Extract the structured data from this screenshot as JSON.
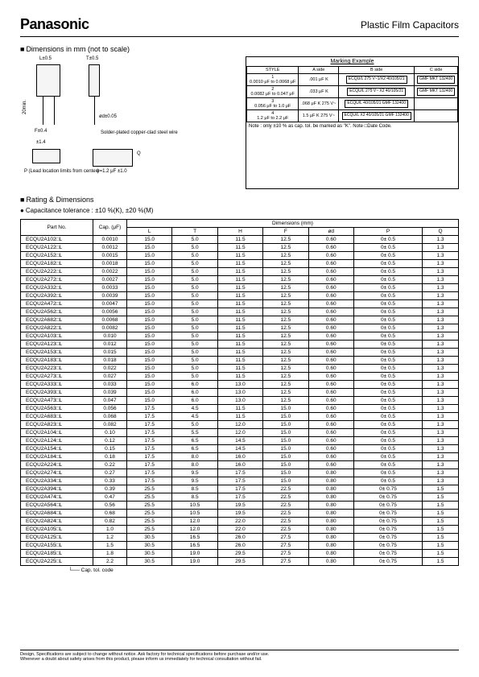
{
  "header": {
    "brand": "Panasonic",
    "title": "Plastic Film Capacitors"
  },
  "sections": {
    "dims_head": "Dimensions in mm (not to scale)",
    "rating_head": "Rating & Dimensions",
    "tol_note": "Capacitance tolerance : ±10 %(K), ±20 %(M)"
  },
  "diagram": {
    "t_label": "T±0.5",
    "l_label": "L±0.5",
    "f_label": "F±0.4",
    "h_label": "20min.",
    "od_label": "ød±0.05",
    "wire_note": "Solder-plated copper-clad steel wire",
    "p_note": "P (Lead location limits from center)",
    "q_note": "Q",
    "phi_note": "ø=1.2 μF ±1.0",
    "pm14": "±1.4"
  },
  "marking": {
    "title": "Marking Example",
    "headers": [
      "STYLE",
      "A side",
      "B side",
      "C side"
    ],
    "rows": [
      {
        "style": "1",
        "range": "0.0010 μF to 0.0068 μF",
        "a": ".001 μF  K",
        "b": "ECQU/L 275 V~1/X2 40/105/21",
        "c": "GMF MKT 132400"
      },
      {
        "style": "2",
        "range": "0.0082 μF to 0.047 μF",
        "a": ".033 μF  K",
        "b": "ECQU/L 275 V~ X2 40/105/21",
        "c": "GMF MKT 132400"
      },
      {
        "style": "3",
        "range": "0.056 μF to 1.0 μF",
        "a": ".068 μF  K 275 V~",
        "b": "ECQU/L 40/105/21 GMF 132400",
        "c": ""
      },
      {
        "style": "4",
        "range": "1.2 μF to 2.2 μF",
        "a": "1.5 μF  K 275 V~",
        "b": "ECQU/L X2 40/105/21 GMF 132400",
        "c": ""
      }
    ],
    "note": "Note : only ±10 % as cap. tol. be marked as \"K\". Note □Date Code."
  },
  "table": {
    "col_head_part": "Part No.",
    "col_head_cap": "Cap. (μF)",
    "col_head_dim": "Dimensions (mm)",
    "dim_cols": [
      "L",
      "T",
      "H",
      "F",
      "ød",
      "P",
      "Q"
    ],
    "rows": [
      {
        "pn": "ECQU2A102□L",
        "cap": "0.0010",
        "L": "15.0",
        "T": "5.0",
        "H": "11.5",
        "F": "12.5",
        "od": "0.60",
        "P": "0± 0.5",
        "Q": "1.3"
      },
      {
        "pn": "ECQU2A122□L",
        "cap": "0.0012",
        "L": "15.0",
        "T": "5.0",
        "H": "11.5",
        "F": "12.5",
        "od": "0.60",
        "P": "0± 0.5",
        "Q": "1.3"
      },
      {
        "pn": "ECQU2A152□L",
        "cap": "0.0015",
        "L": "15.0",
        "T": "5.0",
        "H": "11.5",
        "F": "12.5",
        "od": "0.60",
        "P": "0± 0.5",
        "Q": "1.3"
      },
      {
        "pn": "ECQU2A182□L",
        "cap": "0.0018",
        "L": "15.0",
        "T": "5.0",
        "H": "11.5",
        "F": "12.5",
        "od": "0.60",
        "P": "0± 0.5",
        "Q": "1.3"
      },
      {
        "pn": "ECQU2A222□L",
        "cap": "0.0022",
        "L": "15.0",
        "T": "5.0",
        "H": "11.5",
        "F": "12.5",
        "od": "0.60",
        "P": "0± 0.5",
        "Q": "1.3"
      },
      {
        "pn": "ECQU2A272□L",
        "cap": "0.0027",
        "L": "15.0",
        "T": "5.0",
        "H": "11.5",
        "F": "12.5",
        "od": "0.60",
        "P": "0± 0.5",
        "Q": "1.3"
      },
      {
        "pn": "ECQU2A332□L",
        "cap": "0.0033",
        "L": "15.0",
        "T": "5.0",
        "H": "11.5",
        "F": "12.5",
        "od": "0.60",
        "P": "0± 0.5",
        "Q": "1.3"
      },
      {
        "pn": "ECQU2A392□L",
        "cap": "0.0039",
        "L": "15.0",
        "T": "5.0",
        "H": "11.5",
        "F": "12.5",
        "od": "0.60",
        "P": "0± 0.5",
        "Q": "1.3"
      },
      {
        "pn": "ECQU2A472□L",
        "cap": "0.0047",
        "L": "15.0",
        "T": "5.0",
        "H": "11.5",
        "F": "12.5",
        "od": "0.60",
        "P": "0± 0.5",
        "Q": "1.3"
      },
      {
        "pn": "ECQU2A562□L",
        "cap": "0.0056",
        "L": "15.0",
        "T": "5.0",
        "H": "11.5",
        "F": "12.5",
        "od": "0.60",
        "P": "0± 0.5",
        "Q": "1.3"
      },
      {
        "pn": "ECQU2A682□L",
        "cap": "0.0068",
        "L": "15.0",
        "T": "5.0",
        "H": "11.5",
        "F": "12.5",
        "od": "0.60",
        "P": "0± 0.5",
        "Q": "1.3"
      },
      {
        "pn": "ECQU2A822□L",
        "cap": "0.0082",
        "L": "15.0",
        "T": "5.0",
        "H": "11.5",
        "F": "12.5",
        "od": "0.60",
        "P": "0± 0.5",
        "Q": "1.3"
      },
      {
        "pn": "ECQU2A103□L",
        "cap": "0.010",
        "L": "15.0",
        "T": "5.0",
        "H": "11.5",
        "F": "12.5",
        "od": "0.60",
        "P": "0± 0.5",
        "Q": "1.3"
      },
      {
        "pn": "ECQU2A123□L",
        "cap": "0.012",
        "L": "15.0",
        "T": "5.0",
        "H": "11.5",
        "F": "12.5",
        "od": "0.60",
        "P": "0± 0.5",
        "Q": "1.3"
      },
      {
        "pn": "ECQU2A153□L",
        "cap": "0.015",
        "L": "15.0",
        "T": "5.0",
        "H": "11.5",
        "F": "12.5",
        "od": "0.60",
        "P": "0± 0.5",
        "Q": "1.3"
      },
      {
        "pn": "ECQU2A183□L",
        "cap": "0.018",
        "L": "15.0",
        "T": "5.0",
        "H": "11.5",
        "F": "12.5",
        "od": "0.60",
        "P": "0± 0.5",
        "Q": "1.3"
      },
      {
        "pn": "ECQU2A223□L",
        "cap": "0.022",
        "L": "15.0",
        "T": "5.0",
        "H": "11.5",
        "F": "12.5",
        "od": "0.60",
        "P": "0± 0.5",
        "Q": "1.3"
      },
      {
        "pn": "ECQU2A273□L",
        "cap": "0.027",
        "L": "15.0",
        "T": "5.0",
        "H": "11.5",
        "F": "12.5",
        "od": "0.60",
        "P": "0± 0.5",
        "Q": "1.3"
      },
      {
        "pn": "ECQU2A333□L",
        "cap": "0.033",
        "L": "15.0",
        "T": "6.0",
        "H": "13.0",
        "F": "12.5",
        "od": "0.60",
        "P": "0± 0.5",
        "Q": "1.3"
      },
      {
        "pn": "ECQU2A393□L",
        "cap": "0.039",
        "L": "15.0",
        "T": "6.0",
        "H": "13.0",
        "F": "12.5",
        "od": "0.60",
        "P": "0± 0.5",
        "Q": "1.3"
      },
      {
        "pn": "ECQU2A473□L",
        "cap": "0.047",
        "L": "15.0",
        "T": "6.0",
        "H": "13.0",
        "F": "12.5",
        "od": "0.60",
        "P": "0± 0.5",
        "Q": "1.3"
      },
      {
        "pn": "ECQU2A563□L",
        "cap": "0.056",
        "L": "17.5",
        "T": "4.5",
        "H": "11.5",
        "F": "15.0",
        "od": "0.60",
        "P": "0± 0.5",
        "Q": "1.3"
      },
      {
        "pn": "ECQU2A683□L",
        "cap": "0.068",
        "L": "17.5",
        "T": "4.5",
        "H": "11.5",
        "F": "15.0",
        "od": "0.60",
        "P": "0± 0.5",
        "Q": "1.3"
      },
      {
        "pn": "ECQU2A823□L",
        "cap": "0.082",
        "L": "17.5",
        "T": "5.0",
        "H": "12.0",
        "F": "15.0",
        "od": "0.60",
        "P": "0± 0.5",
        "Q": "1.3"
      },
      {
        "pn": "ECQU2A104□L",
        "cap": "0.10",
        "L": "17.5",
        "T": "5.5",
        "H": "12.0",
        "F": "15.0",
        "od": "0.60",
        "P": "0± 0.5",
        "Q": "1.3"
      },
      {
        "pn": "ECQU2A124□L",
        "cap": "0.12",
        "L": "17.5",
        "T": "6.5",
        "H": "14.5",
        "F": "15.0",
        "od": "0.60",
        "P": "0± 0.5",
        "Q": "1.3"
      },
      {
        "pn": "ECQU2A154□L",
        "cap": "0.15",
        "L": "17.5",
        "T": "6.5",
        "H": "14.5",
        "F": "15.0",
        "od": "0.60",
        "P": "0± 0.5",
        "Q": "1.3"
      },
      {
        "pn": "ECQU2A184□L",
        "cap": "0.18",
        "L": "17.5",
        "T": "8.0",
        "H": "16.0",
        "F": "15.0",
        "od": "0.60",
        "P": "0± 0.5",
        "Q": "1.3"
      },
      {
        "pn": "ECQU2A224□L",
        "cap": "0.22",
        "L": "17.5",
        "T": "8.0",
        "H": "16.0",
        "F": "15.0",
        "od": "0.60",
        "P": "0± 0.5",
        "Q": "1.3"
      },
      {
        "pn": "ECQU2A274□L",
        "cap": "0.27",
        "L": "17.5",
        "T": "9.5",
        "H": "17.5",
        "F": "15.0",
        "od": "0.80",
        "P": "0± 0.5",
        "Q": "1.3"
      },
      {
        "pn": "ECQU2A334□L",
        "cap": "0.33",
        "L": "17.5",
        "T": "9.5",
        "H": "17.5",
        "F": "15.0",
        "od": "0.80",
        "P": "0± 0.5",
        "Q": "1.3"
      },
      {
        "pn": "ECQU2A394□L",
        "cap": "0.39",
        "L": "25.5",
        "T": "8.5",
        "H": "17.5",
        "F": "22.5",
        "od": "0.80",
        "P": "0± 0.75",
        "Q": "1.5"
      },
      {
        "pn": "ECQU2A474□L",
        "cap": "0.47",
        "L": "25.5",
        "T": "8.5",
        "H": "17.5",
        "F": "22.5",
        "od": "0.80",
        "P": "0± 0.75",
        "Q": "1.5"
      },
      {
        "pn": "ECQU2A564□L",
        "cap": "0.56",
        "L": "25.5",
        "T": "10.5",
        "H": "19.5",
        "F": "22.5",
        "od": "0.80",
        "P": "0± 0.75",
        "Q": "1.5"
      },
      {
        "pn": "ECQU2A684□L",
        "cap": "0.68",
        "L": "25.5",
        "T": "10.5",
        "H": "19.5",
        "F": "22.5",
        "od": "0.80",
        "P": "0± 0.75",
        "Q": "1.5"
      },
      {
        "pn": "ECQU2A824□L",
        "cap": "0.82",
        "L": "25.5",
        "T": "12.0",
        "H": "22.0",
        "F": "22.5",
        "od": "0.80",
        "P": "0± 0.75",
        "Q": "1.5"
      },
      {
        "pn": "ECQU2A105□L",
        "cap": "1.0",
        "L": "25.5",
        "T": "12.0",
        "H": "22.0",
        "F": "22.5",
        "od": "0.80",
        "P": "0± 0.75",
        "Q": "1.5"
      },
      {
        "pn": "ECQU2A125□L",
        "cap": "1.2",
        "L": "30.5",
        "T": "16.5",
        "H": "26.0",
        "F": "27.5",
        "od": "0.80",
        "P": "0± 0.75",
        "Q": "1.5"
      },
      {
        "pn": "ECQU2A155□L",
        "cap": "1.5",
        "L": "30.5",
        "T": "16.5",
        "H": "26.0",
        "F": "27.5",
        "od": "0.80",
        "P": "0± 0.75",
        "Q": "1.5"
      },
      {
        "pn": "ECQU2A185□L",
        "cap": "1.8",
        "L": "30.5",
        "T": "19.0",
        "H": "29.5",
        "F": "27.5",
        "od": "0.80",
        "P": "0± 0.75",
        "Q": "1.5"
      },
      {
        "pn": "ECQU2A225□L",
        "cap": "2.2",
        "L": "30.5",
        "T": "19.0",
        "H": "29.5",
        "F": "27.5",
        "od": "0.80",
        "P": "0± 0.75",
        "Q": "1.5"
      }
    ],
    "cap_tol_note": "Cap. tol. code"
  },
  "footer": {
    "line1": "Design, Specifications are subject to change without notice.    Ask factory for technical specifications before purchase and/or use.",
    "line2": "Whenever a doubt about safety arises from this product, please inform us immediately for technical consultation without fail."
  }
}
